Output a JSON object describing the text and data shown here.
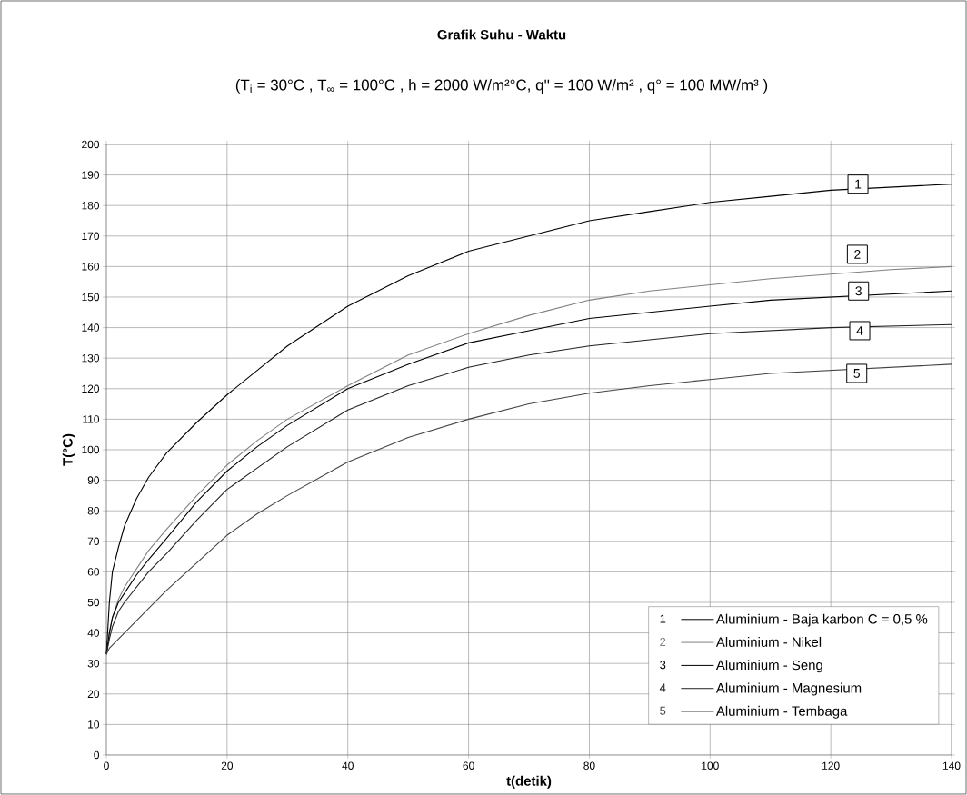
{
  "chart_data": {
    "type": "line",
    "title": "Grafik Suhu - Waktu",
    "subtitle": "(T$_{i}$ = 30°C , T$_{∞}$ = 100°C , h = 2000 W/m²°C, q'' = 100 W/m² , q° = 100 MW/m³ )",
    "xlabel": "t(detik)",
    "ylabel": "T(°C)",
    "x": [
      0,
      0.5,
      1,
      2,
      3,
      5,
      7,
      10,
      15,
      20,
      25,
      30,
      40,
      50,
      60,
      70,
      80,
      90,
      100,
      110,
      120,
      130,
      140
    ],
    "series": [
      {
        "name": "Aluminium - Baja karbon C = 0,5 %",
        "color": "#000000",
        "values": [
          33,
          50,
          60,
          68,
          75,
          84,
          91,
          99,
          109,
          118,
          126,
          134,
          147,
          157,
          165,
          170,
          175,
          178,
          181,
          183,
          185,
          186,
          187
        ]
      },
      {
        "name": "Aluminium - Nikel",
        "color": "#808080",
        "values": [
          33,
          40,
          45,
          51,
          55,
          61,
          67,
          74,
          85,
          95,
          103,
          110,
          121,
          131,
          138,
          144,
          149,
          152,
          154,
          156,
          157.5,
          159,
          160
        ]
      },
      {
        "name": "Aluminium - Seng",
        "color": "#000000",
        "values": [
          33,
          40,
          45,
          50,
          53,
          59,
          64,
          71,
          83,
          93,
          101,
          108,
          120,
          128,
          135,
          139,
          143,
          145,
          147,
          149,
          150,
          151,
          152
        ]
      },
      {
        "name": "Aluminium - Magnesium",
        "color": "#222222",
        "values": [
          33,
          38,
          42,
          47,
          50,
          55,
          60,
          66,
          77,
          87,
          94,
          101,
          113,
          121,
          127,
          131,
          134,
          136,
          138,
          139,
          140,
          140.5,
          141
        ]
      },
      {
        "name": "Aluminium - Tembaga",
        "color": "#444444",
        "values": [
          33,
          35,
          36,
          38,
          40,
          44,
          48,
          54,
          63,
          72,
          79,
          85,
          96,
          104,
          110,
          115,
          118.5,
          121,
          123,
          125,
          126,
          127,
          128
        ]
      }
    ],
    "xlim": [
      0,
      140
    ],
    "ylim": [
      0,
      200
    ],
    "xticks": [
      0,
      20,
      40,
      60,
      80,
      100,
      120,
      140
    ],
    "yticks": [
      0,
      10,
      20,
      30,
      40,
      50,
      60,
      70,
      80,
      90,
      100,
      110,
      120,
      130,
      140,
      150,
      160,
      170,
      180,
      190,
      200
    ],
    "grid": true,
    "legend": "bottom right",
    "marker": "none",
    "line_style": "solid",
    "annotations": [
      {
        "text": "1",
        "x": 124.5,
        "y": 187
      },
      {
        "text": "2",
        "x": 124.4,
        "y": 164
      },
      {
        "text": "3",
        "x": 124.6,
        "y": 152
      },
      {
        "text": "4",
        "x": 124.8,
        "y": 139
      },
      {
        "text": "5",
        "x": 124.3,
        "y": 125
      }
    ]
  }
}
